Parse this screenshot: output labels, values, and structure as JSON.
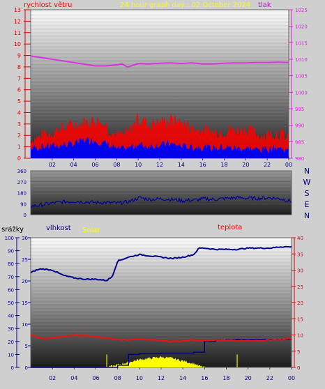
{
  "top_title": "24 hour graph day : 02 October 2024",
  "colors": {
    "wind": "#ff0000",
    "gust_fill": "#ff0000",
    "wind_avg": "#0000ff",
    "pressure": "#dd33dd",
    "direction": "#0000a0",
    "humidity": "#000090",
    "temperature": "#ee1111",
    "rain": "#000080",
    "solar": "#ffff00",
    "solar_bar": "#c8c800",
    "label_red": "#ff0000",
    "label_magenta": "#cc00cc",
    "label_yellow": "#ffff00",
    "axis_red": "#dd0000",
    "axis_magenta": "#dd22dd",
    "axis_navy": "#000080"
  },
  "chart_data": [
    {
      "type": "line",
      "name_ref": "wind_pressure",
      "labels": {
        "left_axis": "rychlost větru",
        "right_axis": "tlak"
      },
      "x_ticks": [
        "02",
        "04",
        "06",
        "08",
        "10",
        "12",
        "14",
        "16",
        "18",
        "20",
        "22",
        "00"
      ],
      "left_ylim": [
        0,
        13
      ],
      "left_ticks": [
        0,
        1,
        2,
        3,
        4,
        5,
        6,
        7,
        8,
        9,
        10,
        11,
        12,
        13
      ],
      "right_ylim": [
        980,
        1025
      ],
      "right_ticks": [
        980,
        985,
        990,
        995,
        1000,
        1005,
        1010,
        1015,
        1020,
        1025
      ],
      "pressure": {
        "x": [
          0,
          1,
          2,
          3,
          4,
          5,
          6,
          7,
          8,
          8.5,
          9,
          10,
          11,
          12,
          13,
          14,
          15,
          16,
          17,
          18,
          19,
          20,
          21,
          22,
          23,
          24
        ],
        "y": [
          1011,
          1010.5,
          1010,
          1009.5,
          1009,
          1008.5,
          1008,
          1008,
          1008.3,
          1008.6,
          1007.6,
          1008.7,
          1008.6,
          1008.8,
          1008.9,
          1008.7,
          1008.9,
          1008.6,
          1008.6,
          1008.8,
          1008.9,
          1008.9,
          1009,
          1009,
          1009.1,
          1009
        ]
      },
      "wind_gust": {
        "x": [
          0,
          1,
          2,
          3,
          4,
          5,
          6,
          7,
          8,
          9,
          10,
          11,
          12,
          13,
          14,
          15,
          16,
          17,
          18,
          19,
          20,
          21,
          22,
          23,
          24
        ],
        "y": [
          1.5,
          1.8,
          2.2,
          2.5,
          2.8,
          3.0,
          3.2,
          2.8,
          1.8,
          2.0,
          3.4,
          2.8,
          3.0,
          3.2,
          3.0,
          2.5,
          2.3,
          2.2,
          2.4,
          2.3,
          2.4,
          2.0,
          1.9,
          2.2,
          1.5
        ]
      },
      "wind_avg": {
        "x": [
          0,
          1,
          2,
          3,
          4,
          5,
          6,
          7,
          8,
          9,
          10,
          11,
          12,
          13,
          14,
          15,
          16,
          17,
          18,
          19,
          20,
          21,
          22,
          23,
          24
        ],
        "y": [
          0.8,
          0.9,
          1.0,
          1.1,
          1.2,
          1.5,
          1.5,
          1.2,
          0.7,
          0.8,
          1.1,
          1.0,
          1.1,
          1.2,
          1.0,
          0.9,
          0.9,
          0.8,
          0.9,
          0.8,
          0.8,
          0.7,
          0.7,
          0.9,
          0.5
        ]
      }
    },
    {
      "type": "line",
      "name_ref": "direction",
      "ylim": [
        0,
        360
      ],
      "y_ticks": [
        0,
        90,
        180,
        270,
        360
      ],
      "compass": [
        "N",
        "W",
        "S",
        "E",
        "N"
      ],
      "direction": {
        "x": [
          0,
          1,
          2,
          3,
          4,
          5,
          6,
          7,
          8,
          9,
          10,
          11,
          12,
          13,
          14,
          15,
          16,
          17,
          18,
          19,
          20,
          21,
          22,
          23,
          24
        ],
        "y": [
          70,
          80,
          95,
          105,
          110,
          105,
          100,
          100,
          95,
          105,
          140,
          125,
          130,
          125,
          115,
          120,
          130,
          125,
          135,
          140,
          135,
          135,
          140,
          130,
          110
        ]
      }
    },
    {
      "type": "line",
      "name_ref": "humidity_temperature",
      "labels": {
        "rain_axis": "srážky",
        "humidity_axis": "vlhkost",
        "solar": "Solar",
        "temperature_axis": "teplota"
      },
      "x_ticks": [
        "02",
        "04",
        "06",
        "08",
        "10",
        "12",
        "14",
        "16",
        "18",
        "20",
        "22",
        "00"
      ],
      "humidity_ylim": [
        0,
        100
      ],
      "humidity_ticks": [
        0,
        10,
        20,
        30,
        40,
        50,
        60,
        70,
        80,
        90,
        100
      ],
      "rain_ylim": [
        0,
        30
      ],
      "rain_ticks": [
        0,
        5,
        10,
        15,
        20,
        25,
        30
      ],
      "temperature_ylim": [
        0,
        40
      ],
      "temperature_ticks": [
        0,
        5,
        10,
        15,
        20,
        25,
        30,
        35,
        40
      ],
      "humidity": {
        "x": [
          0,
          0.5,
          1,
          2,
          3,
          4,
          5,
          6,
          7,
          7.5,
          8,
          9,
          10,
          11,
          12,
          13,
          14,
          15,
          15.5,
          16,
          17,
          18,
          19,
          20,
          21,
          22,
          23,
          24
        ],
        "y": [
          73,
          75,
          76,
          75,
          71,
          69,
          68,
          68,
          67,
          70,
          82,
          85,
          87,
          86,
          85,
          84,
          85,
          87,
          92,
          92,
          91,
          91,
          91,
          92,
          92,
          92,
          93,
          93
        ]
      },
      "temperature": {
        "x": [
          0,
          0.5,
          1,
          2,
          3,
          4,
          5,
          6,
          7,
          8,
          9,
          10,
          11,
          12,
          13,
          14,
          15,
          16,
          17,
          18,
          19,
          20,
          21,
          22,
          23,
          24
        ],
        "y": [
          10,
          9.5,
          9,
          9,
          9.5,
          10,
          9.8,
          9.5,
          9,
          8.5,
          8.5,
          8.8,
          8.5,
          8.3,
          8,
          8.2,
          8.5,
          8.3,
          8.3,
          8.3,
          8.3,
          8.3,
          8.2,
          8.5,
          8.5,
          9
        ]
      },
      "rain": {
        "x": [
          0,
          7,
          8,
          9,
          10,
          11,
          12,
          13,
          14,
          15,
          16,
          17,
          18,
          19,
          20,
          21,
          22,
          23,
          24
        ],
        "y": [
          0,
          0,
          0.5,
          3,
          3.2,
          3.2,
          3.3,
          3.3,
          3.3,
          3.5,
          6,
          6.3,
          6.4,
          6.5,
          6.5,
          6.5,
          6.5,
          6.5,
          6.5
        ]
      },
      "solar": {
        "x": [
          0,
          7,
          8,
          9,
          10,
          11,
          12,
          13,
          14,
          15,
          15.5,
          16,
          24
        ],
        "y": [
          0,
          0,
          2,
          4,
          6,
          7,
          8,
          7,
          5,
          3,
          1,
          0,
          0
        ]
      },
      "solar_spikes": {
        "x": [
          7,
          19
        ],
        "y": [
          3,
          3
        ]
      }
    }
  ]
}
